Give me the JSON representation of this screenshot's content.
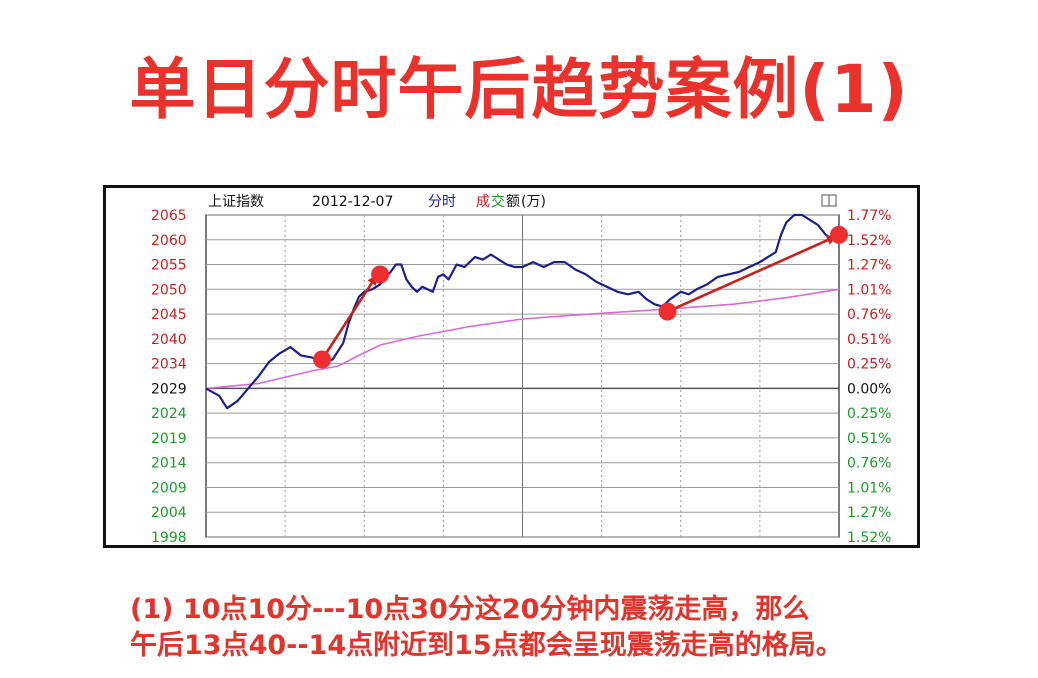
{
  "headline": "单日分时午后趋势案例(1)",
  "caption": {
    "line1": "(1) 10点10分---10点30分这20分钟内震荡走高，那么",
    "line2": "午后13点40--14点附近到15点都会呈现震荡走高的格局。"
  },
  "colors": {
    "headline": "#e8322b",
    "up_label": "#cc1f1f",
    "down_label": "#1f9a2a",
    "price_line": "#1a1f8c",
    "avg_line": "#d96bd6",
    "arrow": "#c8201c",
    "marker": "#ef2f2f",
    "grid": "#9a9a9a",
    "axis": "#222222"
  },
  "chart_data": {
    "type": "line",
    "header": {
      "name": "上证指数",
      "date": "2012-12-07",
      "mode": "分时",
      "vol_label_1": "成",
      "vol_label_2": "交",
      "vol_label_3": "额",
      "unit": "(万)"
    },
    "left_ticks": [
      {
        "label": "2065",
        "value": 2065,
        "side": "up"
      },
      {
        "label": "2060",
        "value": 2060,
        "side": "up"
      },
      {
        "label": "2055",
        "value": 2055,
        "side": "up"
      },
      {
        "label": "2050",
        "value": 2050,
        "side": "up"
      },
      {
        "label": "2045",
        "value": 2045,
        "side": "up"
      },
      {
        "label": "2040",
        "value": 2040,
        "side": "up"
      },
      {
        "label": "2034",
        "value": 2034,
        "side": "up"
      },
      {
        "label": "2029",
        "value": 2029,
        "side": "base"
      },
      {
        "label": "2024",
        "value": 2024,
        "side": "down"
      },
      {
        "label": "2019",
        "value": 2019,
        "side": "down"
      },
      {
        "label": "2014",
        "value": 2014,
        "side": "down"
      },
      {
        "label": "2009",
        "value": 2009,
        "side": "down"
      },
      {
        "label": "2004",
        "value": 2004,
        "side": "down"
      },
      {
        "label": "1998",
        "value": 1998,
        "side": "down"
      }
    ],
    "right_ticks": [
      {
        "label": "1.77%",
        "side": "up"
      },
      {
        "label": "1.52%",
        "side": "up"
      },
      {
        "label": "1.27%",
        "side": "up"
      },
      {
        "label": "1.01%",
        "side": "up"
      },
      {
        "label": "0.76%",
        "side": "up"
      },
      {
        "label": "0.51%",
        "side": "up"
      },
      {
        "label": "0.25%",
        "side": "up"
      },
      {
        "label": "0.00%",
        "side": "base"
      },
      {
        "label": "0.25%",
        "side": "down"
      },
      {
        "label": "0.51%",
        "side": "down"
      },
      {
        "label": "0.76%",
        "side": "down"
      },
      {
        "label": "1.01%",
        "side": "down"
      },
      {
        "label": "1.27%",
        "side": "down"
      },
      {
        "label": "1.52%",
        "side": "down"
      }
    ],
    "ylim": [
      1998,
      2065
    ],
    "x_range": [
      0,
      240
    ],
    "vertical_grid": [
      30,
      60,
      90,
      150,
      180,
      210
    ],
    "session_break": 120,
    "price": [
      [
        0,
        2029.0
      ],
      [
        5,
        2027.5
      ],
      [
        8,
        2025.0
      ],
      [
        12,
        2026.5
      ],
      [
        16,
        2029.0
      ],
      [
        20,
        2031.5
      ],
      [
        24,
        2034.5
      ],
      [
        28,
        2036.5
      ],
      [
        32,
        2038.0
      ],
      [
        36,
        2036.0
      ],
      [
        40,
        2035.5
      ],
      [
        44,
        2034.5
      ],
      [
        48,
        2035.0
      ],
      [
        52,
        2039.0
      ],
      [
        54,
        2043.0
      ],
      [
        56,
        2046.0
      ],
      [
        58,
        2048.5
      ],
      [
        60,
        2049.5
      ],
      [
        63,
        2050.0
      ],
      [
        66,
        2051.0
      ],
      [
        68,
        2052.5
      ],
      [
        70,
        2053.5
      ],
      [
        72,
        2055.0
      ],
      [
        74,
        2055.0
      ],
      [
        76,
        2052.0
      ],
      [
        78,
        2050.5
      ],
      [
        80,
        2049.5
      ],
      [
        82,
        2050.5
      ],
      [
        84,
        2050.0
      ],
      [
        86,
        2049.5
      ],
      [
        88,
        2052.5
      ],
      [
        90,
        2053.0
      ],
      [
        92,
        2052.0
      ],
      [
        95,
        2055.0
      ],
      [
        98,
        2054.5
      ],
      [
        102,
        2056.5
      ],
      [
        105,
        2056.0
      ],
      [
        108,
        2057.0
      ],
      [
        111,
        2056.0
      ],
      [
        114,
        2055.0
      ],
      [
        117,
        2054.5
      ],
      [
        120,
        2054.5
      ],
      [
        124,
        2055.5
      ],
      [
        128,
        2054.5
      ],
      [
        132,
        2055.5
      ],
      [
        136,
        2055.5
      ],
      [
        140,
        2054.0
      ],
      [
        144,
        2053.0
      ],
      [
        148,
        2051.5
      ],
      [
        152,
        2050.5
      ],
      [
        156,
        2049.5
      ],
      [
        160,
        2049.0
      ],
      [
        164,
        2049.5
      ],
      [
        167,
        2048.0
      ],
      [
        170,
        2047.0
      ],
      [
        173,
        2046.5
      ],
      [
        176,
        2048.0
      ],
      [
        180,
        2049.5
      ],
      [
        183,
        2049.0
      ],
      [
        186,
        2050.0
      ],
      [
        190,
        2051.0
      ],
      [
        194,
        2052.5
      ],
      [
        198,
        2053.0
      ],
      [
        202,
        2053.5
      ],
      [
        206,
        2054.5
      ],
      [
        210,
        2055.5
      ],
      [
        213,
        2056.5
      ],
      [
        216,
        2057.5
      ],
      [
        218,
        2061.0
      ],
      [
        220,
        2063.5
      ],
      [
        223,
        2065.0
      ],
      [
        226,
        2065.0
      ],
      [
        229,
        2064.0
      ],
      [
        232,
        2063.0
      ],
      [
        235,
        2061.0
      ],
      [
        238,
        2060.0
      ],
      [
        240,
        2060.5
      ]
    ],
    "average": [
      [
        0,
        2029.0
      ],
      [
        20,
        2030.0
      ],
      [
        40,
        2032.5
      ],
      [
        50,
        2033.5
      ],
      [
        58,
        2036.0
      ],
      [
        66,
        2038.5
      ],
      [
        80,
        2040.5
      ],
      [
        100,
        2042.5
      ],
      [
        120,
        2044.0
      ],
      [
        140,
        2044.8
      ],
      [
        160,
        2045.5
      ],
      [
        180,
        2046.2
      ],
      [
        200,
        2047.0
      ],
      [
        220,
        2048.3
      ],
      [
        240,
        2050.0
      ]
    ],
    "markers": [
      {
        "x": 44,
        "y": 2035.0
      },
      {
        "x": 66,
        "y": 2053.0
      },
      {
        "x": 175,
        "y": 2045.5
      },
      {
        "x": 240,
        "y": 2061.0
      }
    ],
    "arrows": [
      {
        "from": [
          44,
          2035.0
        ],
        "to": [
          66,
          2053.0
        ]
      },
      {
        "from": [
          175,
          2045.5
        ],
        "to": [
          240,
          2061.0
        ]
      }
    ],
    "grid": true
  }
}
